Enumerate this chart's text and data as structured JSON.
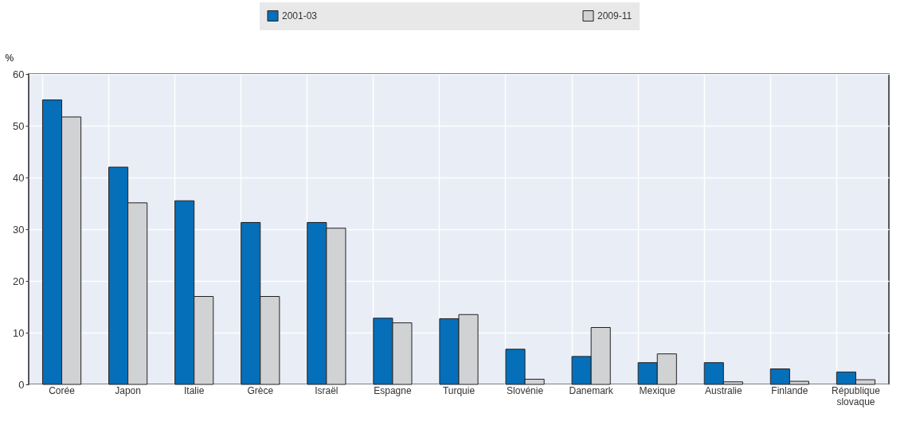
{
  "chart_data": {
    "type": "bar",
    "ylabel": "%",
    "categories": [
      "Corée",
      "Japon",
      "Italie",
      "Grèce",
      "Israël",
      "Espagne",
      "Turquie",
      "Slovénie",
      "Danemark",
      "Mexique",
      "Australie",
      "Finlande",
      "République slovaque"
    ],
    "series": [
      {
        "name": "2001-03",
        "color": "#066fba",
        "values": [
          55,
          42,
          35.5,
          31.3,
          31.3,
          12.8,
          12.7,
          6.8,
          5.4,
          4.2,
          4.2,
          3.0,
          2.4
        ]
      },
      {
        "name": "2009-11",
        "color": "#d1d2d4",
        "values": [
          51.7,
          35.1,
          17,
          17,
          30.2,
          11.9,
          13.5,
          1.0,
          11,
          5.9,
          0.5,
          0.6,
          0.9
        ]
      }
    ],
    "ylim": [
      0,
      60
    ],
    "yticks": [
      0,
      10,
      20,
      30,
      40,
      50,
      60
    ],
    "grid": true,
    "legend": "top"
  }
}
